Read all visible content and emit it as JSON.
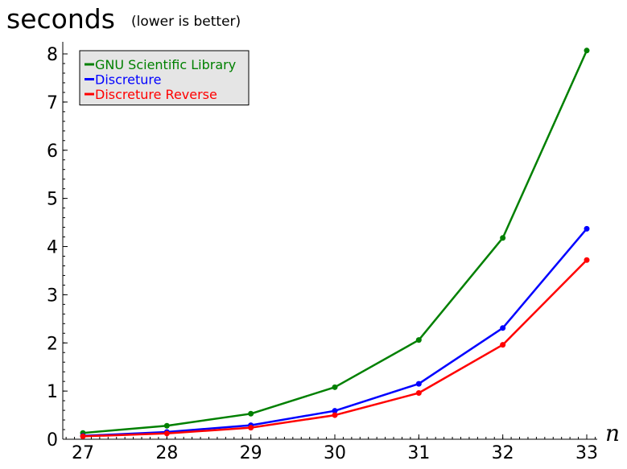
{
  "chart_data": {
    "type": "line",
    "title": "seconds",
    "subtitle": "(lower is better)",
    "xlabel": "n",
    "ylabel": "",
    "x": [
      27,
      28,
      29,
      30,
      31,
      32,
      33
    ],
    "xlim": [
      27,
      33
    ],
    "ylim": [
      0,
      8
    ],
    "xticks": [
      "27",
      "28",
      "29",
      "30",
      "31",
      "32",
      "33"
    ],
    "yticks": [
      "0",
      "1",
      "2",
      "3",
      "4",
      "5",
      "6",
      "7",
      "8"
    ],
    "grid": false,
    "legend_position": "top-left",
    "series": [
      {
        "name": "GNU Scientific Library",
        "color": "#008000",
        "values": [
          0.13,
          0.28,
          0.53,
          1.08,
          2.06,
          4.18,
          8.07
        ]
      },
      {
        "name": "Discreture",
        "color": "#0000ff",
        "values": [
          0.07,
          0.15,
          0.29,
          0.59,
          1.15,
          2.31,
          4.37
        ]
      },
      {
        "name": "Discreture Reverse",
        "color": "#ff0000",
        "values": [
          0.06,
          0.12,
          0.24,
          0.5,
          0.96,
          1.96,
          3.72
        ]
      }
    ]
  }
}
